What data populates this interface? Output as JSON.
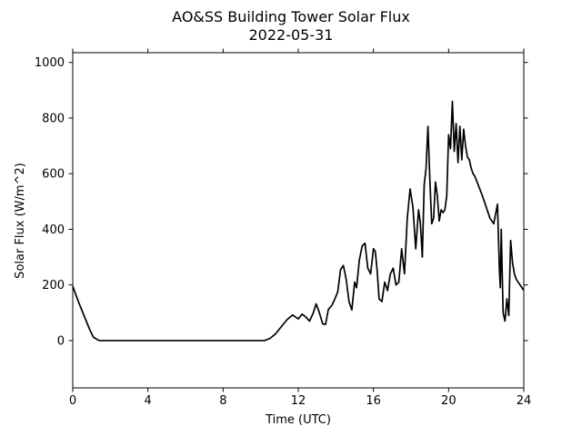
{
  "chart_data": {
    "type": "line",
    "title": "AO&SS Building Tower Solar Flux",
    "subtitle": "2022-05-31",
    "xlabel": "Time (UTC)",
    "ylabel": "Solar Flux (W/m^2)",
    "xlim": [
      0,
      24
    ],
    "ylim": [
      -170,
      1035
    ],
    "xticks": [
      0,
      4,
      8,
      12,
      16,
      20,
      24
    ],
    "xtick_labels": [
      "0",
      "4",
      "8",
      "12",
      "16",
      "20",
      "24"
    ],
    "yticks": [
      0,
      200,
      400,
      600,
      800,
      1000
    ],
    "ytick_labels": [
      "0",
      "200",
      "400",
      "600",
      "800",
      "1000"
    ],
    "grid": false,
    "line_color": "#000000",
    "series": [
      {
        "x": [
          0,
          0.3,
          0.6,
          0.9,
          1.1,
          1.4,
          2,
          4,
          6,
          8,
          10.2,
          10.5,
          10.8,
          11.1,
          11.4,
          11.7,
          12.0,
          12.2,
          12.4,
          12.6,
          12.8,
          12.95,
          13.1,
          13.3,
          13.45,
          13.6,
          13.8,
          13.95,
          14.1,
          14.25,
          14.4,
          14.55,
          14.7,
          14.85,
          15.0,
          15.1,
          15.25,
          15.4,
          15.55,
          15.7,
          15.85,
          16.0,
          16.1,
          16.2,
          16.3,
          16.45,
          16.6,
          16.75,
          16.9,
          17.05,
          17.2,
          17.35,
          17.5,
          17.65,
          17.8,
          17.95,
          18.1,
          18.25,
          18.4,
          18.5,
          18.6,
          18.7,
          18.8,
          18.9,
          19.0,
          19.1,
          19.2,
          19.3,
          19.4,
          19.5,
          19.6,
          19.7,
          19.8,
          19.9,
          20.0,
          20.1,
          20.2,
          20.3,
          20.4,
          20.5,
          20.6,
          20.7,
          20.8,
          20.9,
          21.0,
          21.1,
          21.2,
          21.3,
          21.4,
          21.6,
          21.8,
          22.0,
          22.2,
          22.4,
          22.6,
          22.7,
          22.75,
          22.8,
          22.85,
          22.9,
          23.0,
          23.1,
          23.2,
          23.3,
          23.4,
          23.5,
          23.6,
          23.8,
          24.0
        ],
        "y": [
          195,
          140,
          90,
          40,
          12,
          0,
          0,
          0,
          0,
          0,
          0,
          8,
          25,
          50,
          75,
          92,
          78,
          95,
          85,
          70,
          100,
          132,
          105,
          60,
          58,
          112,
          128,
          150,
          175,
          255,
          270,
          220,
          140,
          110,
          210,
          190,
          290,
          340,
          350,
          260,
          240,
          330,
          320,
          250,
          150,
          140,
          210,
          180,
          240,
          260,
          200,
          210,
          330,
          240,
          440,
          545,
          480,
          330,
          470,
          420,
          300,
          560,
          620,
          770,
          580,
          420,
          440,
          570,
          520,
          430,
          470,
          460,
          470,
          520,
          740,
          690,
          860,
          680,
          780,
          640,
          770,
          650,
          760,
          700,
          660,
          650,
          620,
          600,
          590,
          555,
          520,
          480,
          440,
          420,
          490,
          260,
          190,
          400,
          250,
          100,
          70,
          150,
          90,
          360,
          280,
          240,
          220,
          200,
          180
        ]
      }
    ]
  }
}
